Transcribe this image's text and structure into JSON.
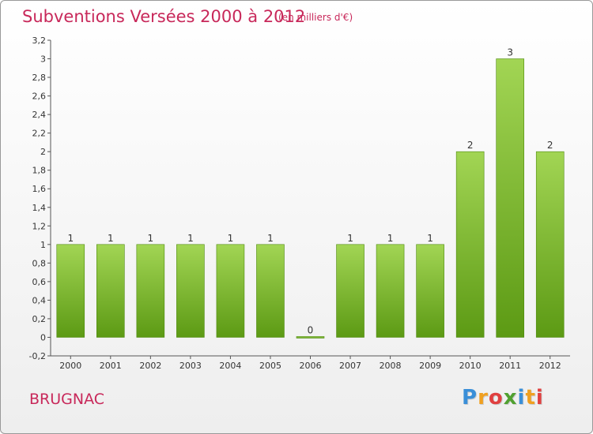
{
  "header": {
    "title": "Subventions Versées 2000 à 2012",
    "subtitle": "(en milliers d'€)"
  },
  "footer": {
    "place": "BRUGNAC",
    "brand": [
      "P",
      "r",
      "o",
      "x",
      "i",
      "t",
      "i"
    ],
    "brand_colors": [
      "#3a8fd8",
      "#f0a020",
      "#e04040",
      "#50a030",
      "#3a8fd8",
      "#f0a020",
      "#e04040"
    ]
  },
  "colors": {
    "title": "#c8285a",
    "bar_light": "#a2d554",
    "bar_dark": "#5c9a14",
    "bar_edge": "#4e8a0e"
  },
  "chart_data": {
    "type": "bar",
    "title": "Subventions Versées 2000 à 2012",
    "subtitle": "(en milliers d'€)",
    "categories": [
      "2000",
      "2001",
      "2002",
      "2003",
      "2004",
      "2005",
      "2006",
      "2007",
      "2008",
      "2009",
      "2010",
      "2011",
      "2012"
    ],
    "values": [
      1,
      1,
      1,
      1,
      1,
      1,
      0,
      1,
      1,
      1,
      2,
      3,
      2
    ],
    "data_labels": [
      "1",
      "1",
      "1",
      "1",
      "1",
      "1",
      "0",
      "1",
      "1",
      "1",
      "2",
      "3",
      "2"
    ],
    "ylim": [
      -0.2,
      3.2
    ],
    "yticks": [
      "-0,2",
      "0",
      "0,2",
      "0,4",
      "0,6",
      "0,8",
      "1",
      "1,2",
      "1,4",
      "1,6",
      "1,8",
      "2",
      "2,2",
      "2,4",
      "2,6",
      "2,8",
      "3",
      "3,2"
    ],
    "ytick_values": [
      -0.2,
      0,
      0.2,
      0.4,
      0.6,
      0.8,
      1,
      1.2,
      1.4,
      1.6,
      1.8,
      2,
      2.2,
      2.4,
      2.6,
      2.8,
      3,
      3.2
    ],
    "grid": false,
    "xlabel": "",
    "ylabel": ""
  }
}
